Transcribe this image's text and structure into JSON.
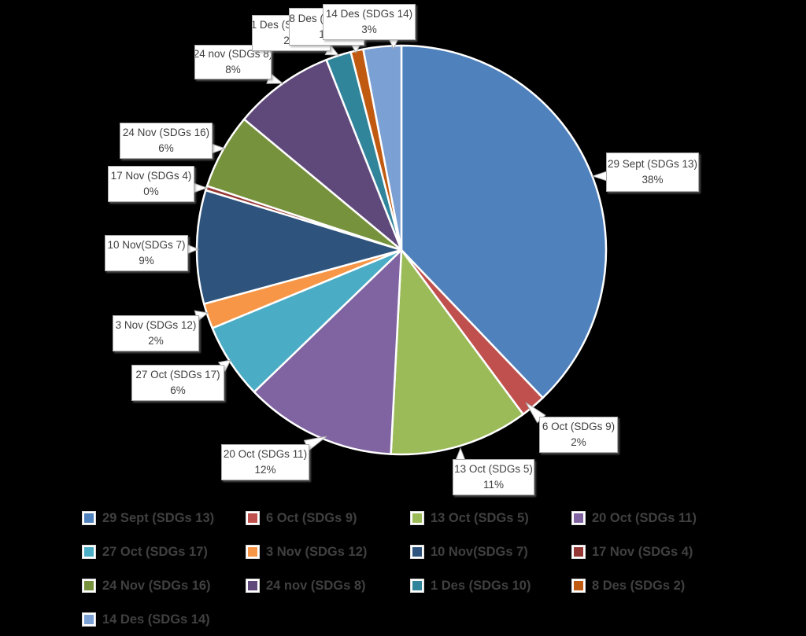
{
  "figure": {
    "background_color": "#000000",
    "slice_border_color": "#FFFFFF",
    "callout_box": {
      "background": "#FFFFFF",
      "border_color": "#ACACAC",
      "text_color": "#3F3F3F"
    },
    "legend": {
      "text_color": "#404040",
      "position": "bottom",
      "columns": 4
    }
  },
  "chart_data": {
    "type": "pie",
    "title": "",
    "value_unit": "percent",
    "labels_shown_as": "callouts with category name and percentage",
    "legend_position": "bottom",
    "slices": [
      {
        "label": "29 Sept (SDGs 13)",
        "value": 38,
        "pct_label": "38%",
        "color": "#4F81BD"
      },
      {
        "label": "6 Oct (SDGs 9)",
        "value": 2,
        "pct_label": "2%",
        "color": "#C0504D"
      },
      {
        "label": "13 Oct (SDGs 5)",
        "value": 11,
        "pct_label": "11%",
        "color": "#9BBB59"
      },
      {
        "label": "20 Oct (SDGs 11)",
        "value": 12,
        "pct_label": "12%",
        "color": "#8064A2"
      },
      {
        "label": "27 Oct (SDGs 17)",
        "value": 6,
        "pct_label": "6%",
        "color": "#4BACC6"
      },
      {
        "label": "3 Nov (SDGs 12)",
        "value": 2,
        "pct_label": "2%",
        "color": "#F79646"
      },
      {
        "label": "10 Nov(SDGs 7)",
        "value": 9,
        "pct_label": "9%",
        "color": "#2E547D"
      },
      {
        "label": "17 Nov (SDGs 4)",
        "value": 0,
        "pct_label": "0%",
        "color": "#953734"
      },
      {
        "label": "24 Nov (SDGs 16)",
        "value": 6,
        "pct_label": "6%",
        "color": "#76923C"
      },
      {
        "label": "24 nov (SDGs 8)",
        "value": 8,
        "pct_label": "8%",
        "color": "#5F497A"
      },
      {
        "label": "1 Des (SDGs 10)",
        "value": 2,
        "pct_label": "2%",
        "color": "#31859B"
      },
      {
        "label": "8 Des (SDGs 2)",
        "value": 1,
        "pct_label": "1%",
        "color": "#C05A11"
      },
      {
        "label": "14 Des (SDGs 14)",
        "value": 3,
        "pct_label": "3%",
        "color": "#7BA0D4"
      }
    ]
  }
}
